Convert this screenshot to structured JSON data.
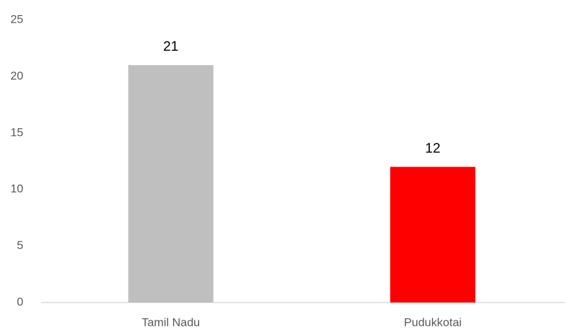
{
  "chart_data": {
    "type": "bar",
    "categories": [
      "Tamil Nadu",
      "Pudukkotai"
    ],
    "values": [
      21,
      12
    ],
    "colors": [
      "#bfbfbf",
      "#ff0000"
    ],
    "ylim": [
      0,
      25
    ],
    "yticks": [
      0,
      5,
      10,
      15,
      20,
      25
    ],
    "grid": false
  }
}
